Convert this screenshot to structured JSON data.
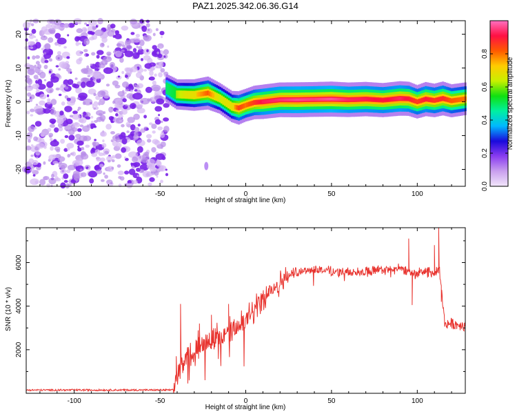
{
  "figure_title": "PAZ1.2025.342.06.36.G14",
  "colors": {
    "snr_line": "#e8322d",
    "axis": "#000000",
    "background": "#ffffff"
  },
  "chart_data": [
    {
      "type": "heatmap",
      "title": "PAZ1.2025.342.06.36.G14",
      "xlabel": "Height of straight line (km)",
      "ylabel": "Frequency (Hz)",
      "xlim": [
        -128,
        128
      ],
      "ylim": [
        -25,
        24
      ],
      "x_ticks": [
        -100,
        -50,
        0,
        50,
        100
      ],
      "y_ticks": [
        -20,
        -10,
        0,
        10,
        20
      ],
      "colorbar": {
        "label": "Normalized spectral amplitude",
        "range": [
          0,
          1
        ],
        "ticks": [
          0.0,
          0.2,
          0.4,
          0.6,
          0.8
        ],
        "tick_labels": [
          "0.0",
          "0.2",
          "0.4",
          "0.6",
          "0.8"
        ],
        "colormap": [
          "#f2e6fa",
          "#c9a0ee",
          "#8a3cf0",
          "#1a0adc",
          "#00b8ff",
          "#00f0a0",
          "#10e010",
          "#c8f000",
          "#ffcc00",
          "#ff5a00",
          "#ff1044",
          "#ff70c0"
        ]
      },
      "noise_region_x": [
        -128,
        -46
      ],
      "ridge": {
        "x": [
          -46,
          -40,
          -30,
          -22,
          -15,
          -8,
          -4,
          0,
          5,
          10,
          20,
          30,
          40,
          50,
          60,
          70,
          80,
          90,
          95,
          100,
          105,
          110,
          115,
          120,
          128
        ],
        "y": [
          4.0,
          2.2,
          2.0,
          2.6,
          1.0,
          -1.4,
          -1.8,
          -1.0,
          -0.2,
          0.0,
          0.6,
          0.6,
          0.7,
          0.8,
          0.6,
          0.8,
          0.5,
          1.0,
          0.9,
          0.0,
          0.8,
          0.4,
          1.0,
          0.3,
          0.9
        ],
        "amp": [
          0.5,
          0.62,
          0.72,
          0.82,
          0.65,
          0.7,
          0.85,
          0.8,
          0.86,
          0.92,
          0.94,
          0.96,
          0.95,
          0.97,
          0.93,
          0.92,
          0.9,
          0.93,
          0.9,
          0.85,
          0.9,
          0.86,
          0.88,
          0.82,
          0.8
        ]
      },
      "isolated_blob": {
        "x": -23,
        "y": -19,
        "amp": 0.15
      }
    },
    {
      "type": "line",
      "title": "",
      "xlabel": "Height of straight line (km)",
      "ylabel": "SNR (10 * v/v)",
      "xlim": [
        -128,
        128
      ],
      "ylim": [
        0,
        7600
      ],
      "x_ticks": [
        -100,
        -50,
        0,
        50,
        100
      ],
      "y_ticks": [
        2000,
        4000,
        6000
      ],
      "series": [
        {
          "name": "SNR",
          "trend_x": [
            -128,
            -42,
            -40,
            -35,
            -30,
            -25,
            -20,
            -15,
            -10,
            -5,
            0,
            5,
            10,
            15,
            20,
            25,
            30,
            40,
            50,
            60,
            70,
            80,
            90,
            95,
            100,
            105,
            110,
            113,
            116,
            120,
            128
          ],
          "trend_y": [
            150,
            150,
            900,
            1700,
            2100,
            2400,
            2500,
            2600,
            2800,
            3000,
            3300,
            3800,
            4300,
            4750,
            5100,
            5400,
            5600,
            5700,
            5600,
            5550,
            5600,
            5650,
            5700,
            5600,
            5500,
            5600,
            5500,
            5600,
            3200,
            3200,
            3100
          ],
          "noise": {
            "flat": 40,
            "transition": 500,
            "plateau": 200,
            "tail": 250
          },
          "spikes": [
            {
              "x": -38,
              "y": 4100
            },
            {
              "x": -40.5,
              "y": 1700
            },
            {
              "x": -27,
              "y": 3200
            },
            {
              "x": -20,
              "y": 3600
            },
            {
              "x": -10,
              "y": 4100
            },
            {
              "x": 95,
              "y": 7100
            },
            {
              "x": 97,
              "y": 4050
            },
            {
              "x": 112.5,
              "y": 7600
            },
            {
              "x": 114,
              "y": 4200
            },
            {
              "x": 110,
              "y": 6800
            }
          ]
        }
      ]
    }
  ]
}
